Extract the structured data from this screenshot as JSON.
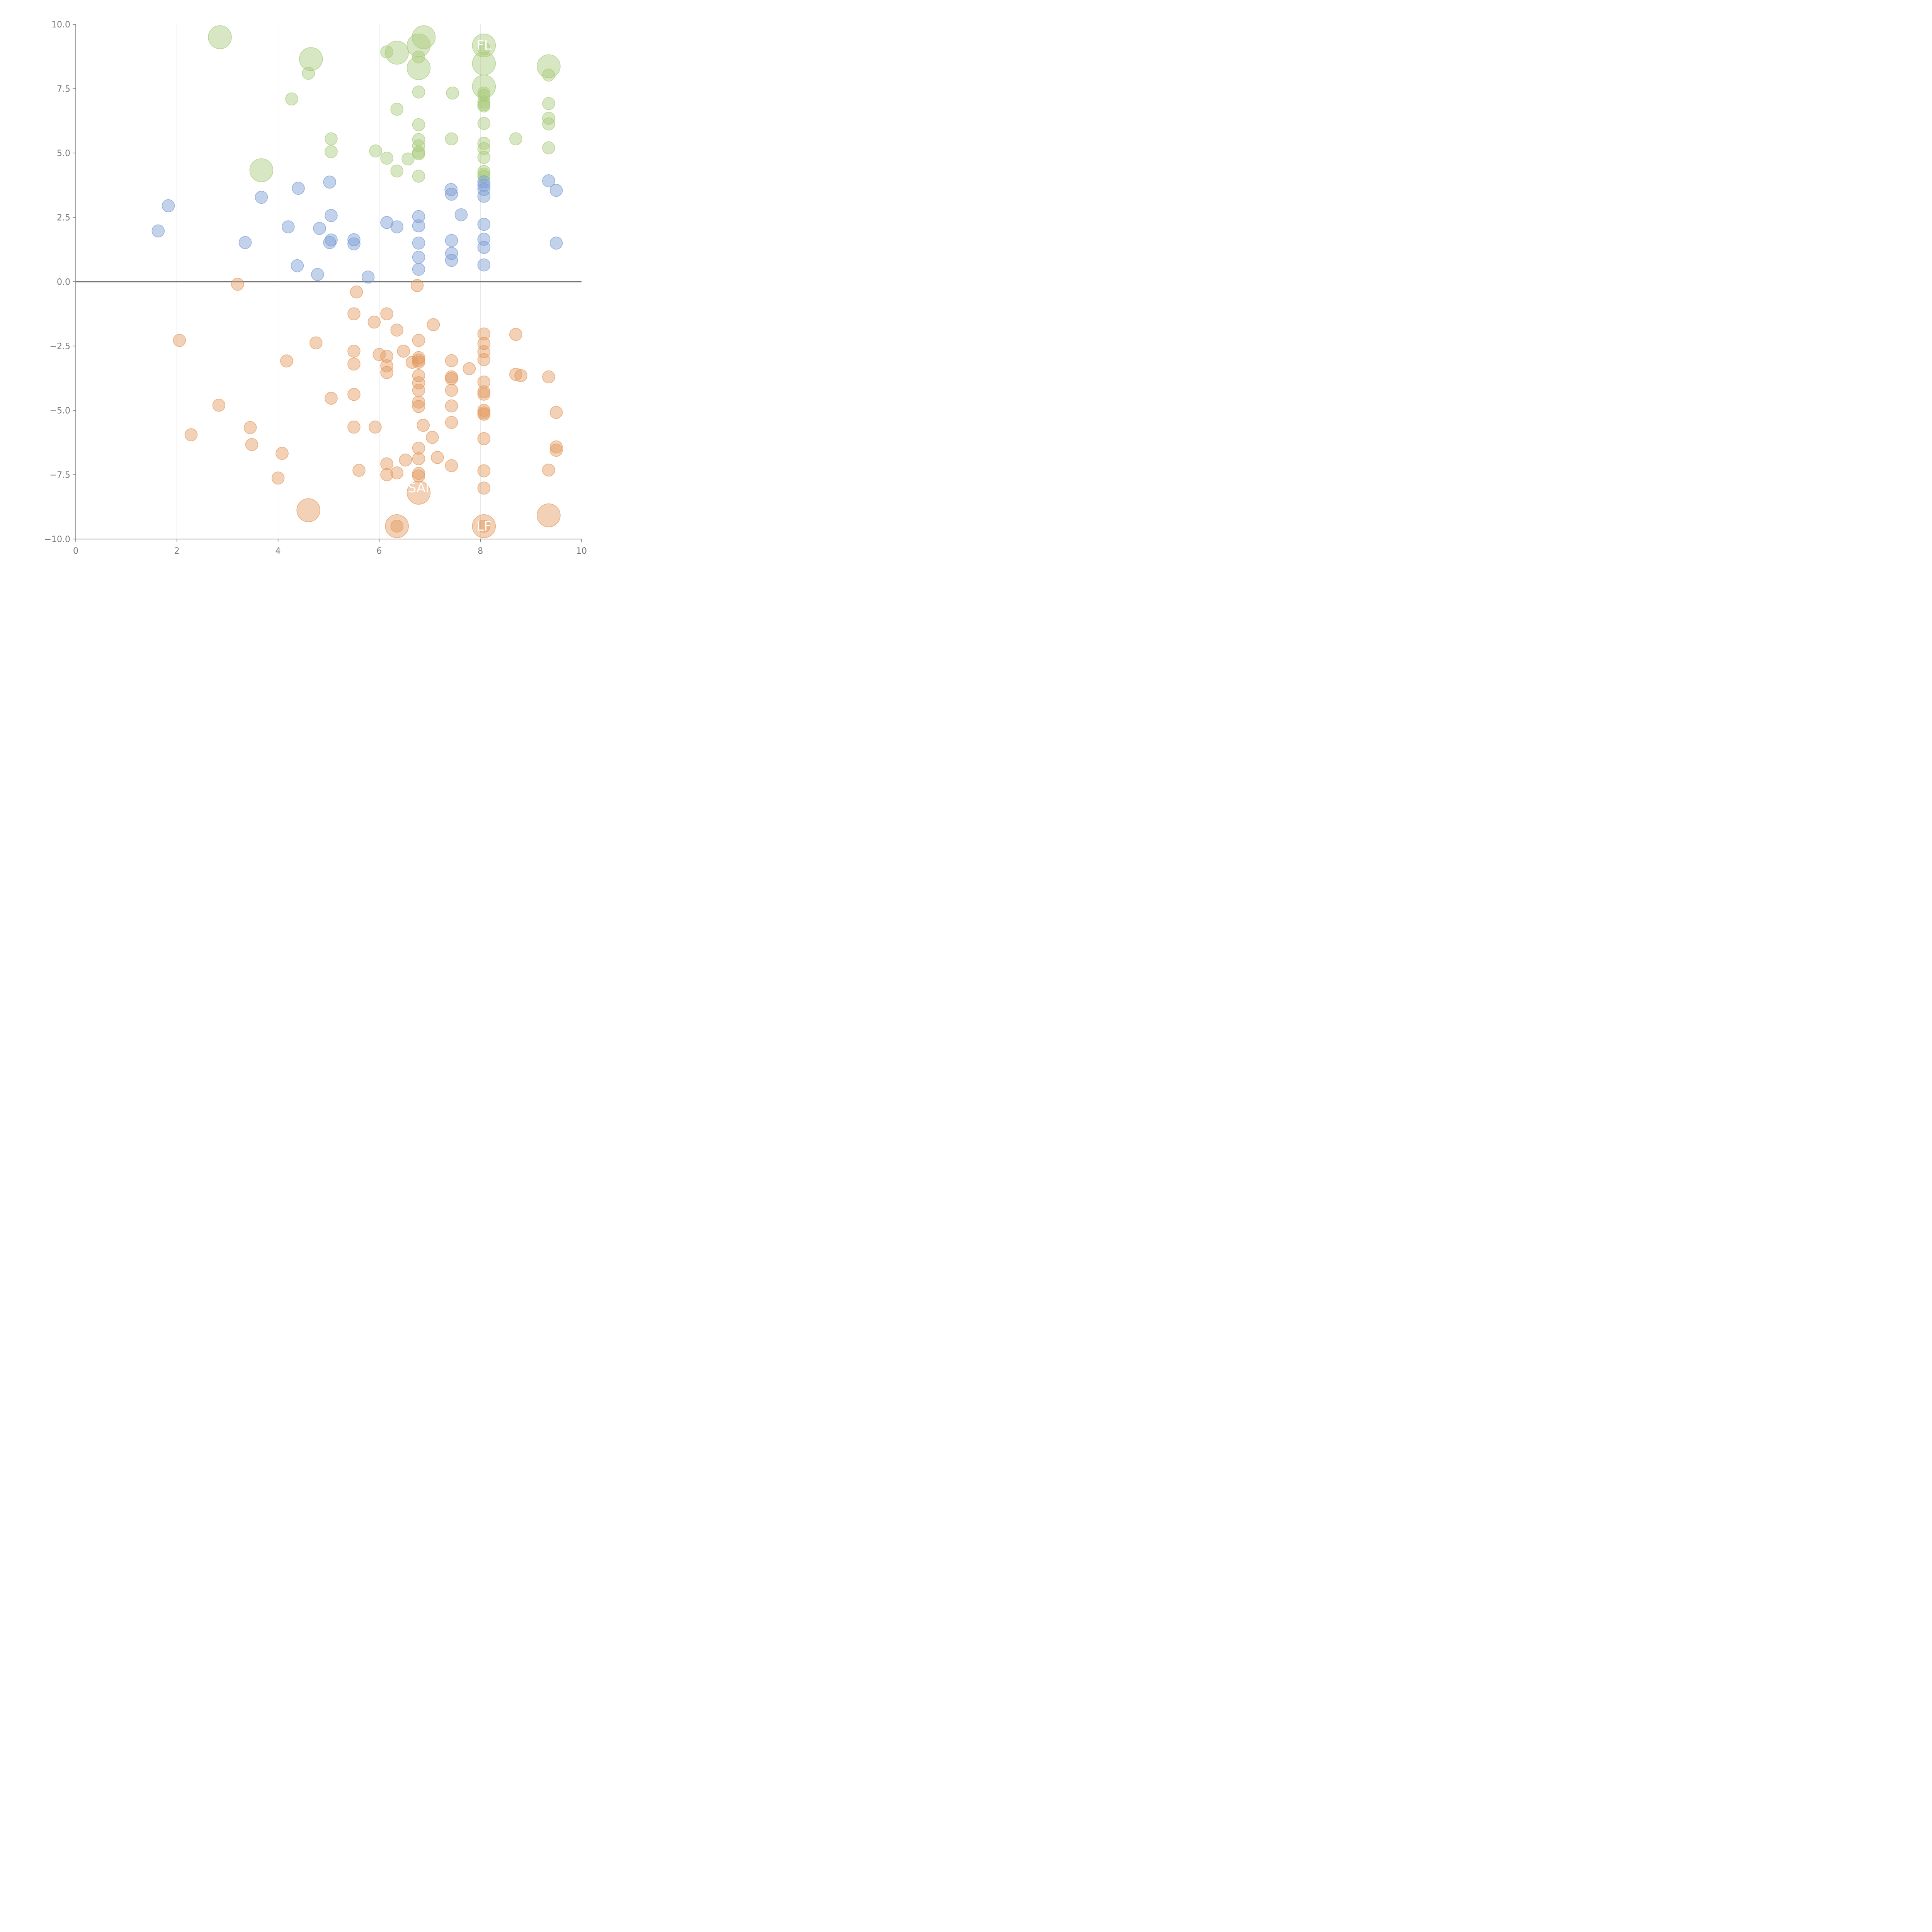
{
  "colors": {
    "positive": "#7a9cd2",
    "negative": "#e39a5e",
    "top": "#a9c97a",
    "axis": "#777777",
    "grid": "#dddddd",
    "zero_line": "#777777",
    "label": "#ffffff"
  },
  "chart_data": {
    "type": "scatter",
    "title": "",
    "xlabel": "",
    "ylabel": "",
    "xlim": [
      0,
      10
    ],
    "ylim": [
      -10,
      10
    ],
    "x_ticks": [
      0,
      2,
      4,
      6,
      8,
      10
    ],
    "x_tick_labels": [
      "0",
      "2",
      "4",
      "6",
      "8",
      "10"
    ],
    "y_ticks": [
      10,
      7.5,
      5,
      2.5,
      0,
      -2.5,
      -5,
      -7.5,
      -10
    ],
    "y_tick_labels": [
      "10.0",
      "7.5",
      "5.0",
      "2.5",
      "0.0",
      "−2.5",
      "−5.0",
      "−7.5",
      "−10.0"
    ],
    "vertical_grid_x": [
      2,
      4,
      6,
      8
    ],
    "series": [
      {
        "name": "top",
        "color_key": "top",
        "points": [
          {
            "x": 2.85,
            "y": 9.5,
            "size": "large"
          },
          {
            "x": 4.65,
            "y": 8.65,
            "size": "large"
          },
          {
            "x": 4.6,
            "y": 8.1,
            "size": "small"
          },
          {
            "x": 4.27,
            "y": 7.1,
            "size": "small"
          },
          {
            "x": 3.67,
            "y": 4.33,
            "size": "large"
          },
          {
            "x": 5.05,
            "y": 5.55,
            "size": "small"
          },
          {
            "x": 5.05,
            "y": 5.05,
            "size": "small"
          },
          {
            "x": 5.93,
            "y": 5.08,
            "size": "small"
          },
          {
            "x": 6.15,
            "y": 8.93,
            "size": "small"
          },
          {
            "x": 6.35,
            "y": 8.9,
            "size": "large"
          },
          {
            "x": 6.35,
            "y": 6.7,
            "size": "small"
          },
          {
            "x": 6.15,
            "y": 4.8,
            "size": "small"
          },
          {
            "x": 6.35,
            "y": 4.3,
            "size": "small"
          },
          {
            "x": 6.57,
            "y": 4.77,
            "size": "small"
          },
          {
            "x": 6.88,
            "y": 9.5,
            "size": "large"
          },
          {
            "x": 6.78,
            "y": 9.18,
            "size": "large"
          },
          {
            "x": 6.78,
            "y": 8.73,
            "size": "small"
          },
          {
            "x": 6.78,
            "y": 8.3,
            "size": "large"
          },
          {
            "x": 6.78,
            "y": 7.37,
            "size": "small"
          },
          {
            "x": 6.78,
            "y": 6.1,
            "size": "small"
          },
          {
            "x": 6.78,
            "y": 5.52,
            "size": "small"
          },
          {
            "x": 6.78,
            "y": 5.28,
            "size": "small"
          },
          {
            "x": 6.78,
            "y": 5.03,
            "size": "small"
          },
          {
            "x": 6.78,
            "y": 4.97,
            "size": "small"
          },
          {
            "x": 6.78,
            "y": 4.1,
            "size": "small"
          },
          {
            "x": 7.43,
            "y": 5.55,
            "size": "small"
          },
          {
            "x": 7.45,
            "y": 7.33,
            "size": "small"
          },
          {
            "x": 8.07,
            "y": 9.18,
            "size": "large"
          },
          {
            "x": 8.07,
            "y": 9.05,
            "size": "small"
          },
          {
            "x": 8.07,
            "y": 8.48,
            "size": "large"
          },
          {
            "x": 8.07,
            "y": 7.58,
            "size": "large"
          },
          {
            "x": 8.07,
            "y": 7.33,
            "size": "small"
          },
          {
            "x": 8.07,
            "y": 7.23,
            "size": "small"
          },
          {
            "x": 8.07,
            "y": 6.98,
            "size": "small"
          },
          {
            "x": 8.07,
            "y": 6.88,
            "size": "small"
          },
          {
            "x": 8.07,
            "y": 6.83,
            "size": "small"
          },
          {
            "x": 8.07,
            "y": 6.15,
            "size": "small"
          },
          {
            "x": 8.07,
            "y": 5.38,
            "size": "small"
          },
          {
            "x": 8.07,
            "y": 5.17,
            "size": "small"
          },
          {
            "x": 8.07,
            "y": 4.83,
            "size": "small"
          },
          {
            "x": 8.07,
            "y": 4.28,
            "size": "small"
          },
          {
            "x": 8.07,
            "y": 4.18,
            "size": "small"
          },
          {
            "x": 8.07,
            "y": 4.08,
            "size": "small"
          },
          {
            "x": 8.7,
            "y": 5.55,
            "size": "small"
          },
          {
            "x": 9.35,
            "y": 8.37,
            "size": "large"
          },
          {
            "x": 9.35,
            "y": 8.03,
            "size": "small"
          },
          {
            "x": 9.35,
            "y": 6.92,
            "size": "small"
          },
          {
            "x": 9.35,
            "y": 6.35,
            "size": "small"
          },
          {
            "x": 9.35,
            "y": 6.13,
            "size": "small"
          },
          {
            "x": 9.35,
            "y": 5.2,
            "size": "small"
          }
        ]
      },
      {
        "name": "positive",
        "color_key": "positive",
        "points": [
          {
            "x": 1.63,
            "y": 1.97,
            "size": "small"
          },
          {
            "x": 1.83,
            "y": 2.95,
            "size": "small"
          },
          {
            "x": 3.35,
            "y": 1.52,
            "size": "small"
          },
          {
            "x": 3.67,
            "y": 3.28,
            "size": "small"
          },
          {
            "x": 4.2,
            "y": 2.13,
            "size": "small"
          },
          {
            "x": 4.38,
            "y": 0.62,
            "size": "small"
          },
          {
            "x": 4.4,
            "y": 3.63,
            "size": "small"
          },
          {
            "x": 4.78,
            "y": 0.28,
            "size": "small"
          },
          {
            "x": 4.82,
            "y": 2.07,
            "size": "small"
          },
          {
            "x": 5.02,
            "y": 3.87,
            "size": "small"
          },
          {
            "x": 5.05,
            "y": 2.57,
            "size": "small"
          },
          {
            "x": 5.05,
            "y": 1.62,
            "size": "small"
          },
          {
            "x": 5.02,
            "y": 1.52,
            "size": "small"
          },
          {
            "x": 5.5,
            "y": 1.63,
            "size": "small"
          },
          {
            "x": 5.5,
            "y": 1.47,
            "size": "small"
          },
          {
            "x": 5.78,
            "y": 0.18,
            "size": "small"
          },
          {
            "x": 6.15,
            "y": 2.3,
            "size": "small"
          },
          {
            "x": 6.35,
            "y": 2.13,
            "size": "small"
          },
          {
            "x": 6.78,
            "y": 2.53,
            "size": "small"
          },
          {
            "x": 6.78,
            "y": 2.17,
            "size": "small"
          },
          {
            "x": 6.78,
            "y": 1.5,
            "size": "small"
          },
          {
            "x": 6.78,
            "y": 0.95,
            "size": "small"
          },
          {
            "x": 6.78,
            "y": 0.48,
            "size": "small"
          },
          {
            "x": 7.42,
            "y": 3.58,
            "size": "small"
          },
          {
            "x": 7.43,
            "y": 3.4,
            "size": "small"
          },
          {
            "x": 7.43,
            "y": 1.6,
            "size": "small"
          },
          {
            "x": 7.43,
            "y": 1.1,
            "size": "small"
          },
          {
            "x": 7.43,
            "y": 0.83,
            "size": "small"
          },
          {
            "x": 7.62,
            "y": 2.6,
            "size": "small"
          },
          {
            "x": 8.07,
            "y": 3.88,
            "size": "small"
          },
          {
            "x": 8.07,
            "y": 3.75,
            "size": "small"
          },
          {
            "x": 8.07,
            "y": 3.58,
            "size": "small"
          },
          {
            "x": 8.07,
            "y": 3.32,
            "size": "small"
          },
          {
            "x": 8.07,
            "y": 2.23,
            "size": "small"
          },
          {
            "x": 8.07,
            "y": 1.65,
            "size": "small"
          },
          {
            "x": 8.07,
            "y": 1.33,
            "size": "small"
          },
          {
            "x": 8.07,
            "y": 0.65,
            "size": "small"
          },
          {
            "x": 9.35,
            "y": 3.92,
            "size": "small"
          },
          {
            "x": 9.5,
            "y": 3.55,
            "size": "small"
          },
          {
            "x": 9.5,
            "y": 1.5,
            "size": "small"
          }
        ]
      },
      {
        "name": "negative",
        "color_key": "negative",
        "points": [
          {
            "x": 2.05,
            "y": -2.28,
            "size": "small"
          },
          {
            "x": 2.28,
            "y": -5.95,
            "size": "small"
          },
          {
            "x": 2.83,
            "y": -4.8,
            "size": "small"
          },
          {
            "x": 3.2,
            "y": -0.1,
            "size": "small"
          },
          {
            "x": 3.45,
            "y": -5.67,
            "size": "small"
          },
          {
            "x": 3.48,
            "y": -6.33,
            "size": "small"
          },
          {
            "x": 4.0,
            "y": -7.63,
            "size": "small"
          },
          {
            "x": 4.08,
            "y": -6.67,
            "size": "small"
          },
          {
            "x": 4.17,
            "y": -3.08,
            "size": "small"
          },
          {
            "x": 4.6,
            "y": -8.88,
            "size": "large"
          },
          {
            "x": 4.75,
            "y": -2.38,
            "size": "small"
          },
          {
            "x": 5.05,
            "y": -4.53,
            "size": "small"
          },
          {
            "x": 5.5,
            "y": -1.25,
            "size": "small"
          },
          {
            "x": 5.5,
            "y": -2.7,
            "size": "small"
          },
          {
            "x": 5.5,
            "y": -3.2,
            "size": "small"
          },
          {
            "x": 5.5,
            "y": -4.38,
            "size": "small"
          },
          {
            "x": 5.5,
            "y": -5.65,
            "size": "small"
          },
          {
            "x": 5.55,
            "y": -0.4,
            "size": "small"
          },
          {
            "x": 5.6,
            "y": -7.33,
            "size": "small"
          },
          {
            "x": 5.9,
            "y": -1.57,
            "size": "small"
          },
          {
            "x": 5.92,
            "y": -5.65,
            "size": "small"
          },
          {
            "x": 6.0,
            "y": -2.83,
            "size": "small"
          },
          {
            "x": 6.15,
            "y": -1.25,
            "size": "small"
          },
          {
            "x": 6.15,
            "y": -2.9,
            "size": "small"
          },
          {
            "x": 6.15,
            "y": -3.27,
            "size": "small"
          },
          {
            "x": 6.15,
            "y": -3.53,
            "size": "small"
          },
          {
            "x": 6.15,
            "y": -7.08,
            "size": "small"
          },
          {
            "x": 6.15,
            "y": -7.5,
            "size": "small"
          },
          {
            "x": 6.35,
            "y": -1.88,
            "size": "small"
          },
          {
            "x": 6.35,
            "y": -7.43,
            "size": "small"
          },
          {
            "x": 6.35,
            "y": -9.5,
            "size": "large"
          },
          {
            "x": 6.35,
            "y": -9.5,
            "size": "small"
          },
          {
            "x": 6.48,
            "y": -2.7,
            "size": "small"
          },
          {
            "x": 6.52,
            "y": -6.93,
            "size": "small"
          },
          {
            "x": 6.65,
            "y": -3.13,
            "size": "small"
          },
          {
            "x": 6.75,
            "y": -0.15,
            "size": "small"
          },
          {
            "x": 6.78,
            "y": -2.28,
            "size": "small"
          },
          {
            "x": 6.78,
            "y": -2.95,
            "size": "small"
          },
          {
            "x": 6.78,
            "y": -3.05,
            "size": "small"
          },
          {
            "x": 6.78,
            "y": -3.13,
            "size": "small"
          },
          {
            "x": 6.78,
            "y": -3.65,
            "size": "small"
          },
          {
            "x": 6.78,
            "y": -3.93,
            "size": "small"
          },
          {
            "x": 6.78,
            "y": -4.22,
            "size": "small"
          },
          {
            "x": 6.78,
            "y": -4.68,
            "size": "small"
          },
          {
            "x": 6.78,
            "y": -4.85,
            "size": "small"
          },
          {
            "x": 6.78,
            "y": -6.47,
            "size": "small"
          },
          {
            "x": 6.78,
            "y": -6.88,
            "size": "small"
          },
          {
            "x": 6.78,
            "y": -7.45,
            "size": "small"
          },
          {
            "x": 6.78,
            "y": -7.55,
            "size": "small"
          },
          {
            "x": 6.78,
            "y": -8.2,
            "size": "large"
          },
          {
            "x": 6.87,
            "y": -5.58,
            "size": "small"
          },
          {
            "x": 7.05,
            "y": -6.05,
            "size": "small"
          },
          {
            "x": 7.07,
            "y": -1.67,
            "size": "small"
          },
          {
            "x": 7.15,
            "y": -6.83,
            "size": "small"
          },
          {
            "x": 7.43,
            "y": -3.07,
            "size": "small"
          },
          {
            "x": 7.43,
            "y": -3.7,
            "size": "small"
          },
          {
            "x": 7.43,
            "y": -3.77,
            "size": "small"
          },
          {
            "x": 7.43,
            "y": -4.22,
            "size": "small"
          },
          {
            "x": 7.43,
            "y": -4.83,
            "size": "small"
          },
          {
            "x": 7.43,
            "y": -5.47,
            "size": "small"
          },
          {
            "x": 7.43,
            "y": -7.15,
            "size": "small"
          },
          {
            "x": 7.78,
            "y": -3.38,
            "size": "small"
          },
          {
            "x": 8.07,
            "y": -2.03,
            "size": "small"
          },
          {
            "x": 8.07,
            "y": -2.4,
            "size": "small"
          },
          {
            "x": 8.07,
            "y": -2.72,
            "size": "small"
          },
          {
            "x": 8.07,
            "y": -3.03,
            "size": "small"
          },
          {
            "x": 8.07,
            "y": -3.9,
            "size": "small"
          },
          {
            "x": 8.07,
            "y": -4.28,
            "size": "small"
          },
          {
            "x": 8.07,
            "y": -4.37,
            "size": "small"
          },
          {
            "x": 8.07,
            "y": -5.0,
            "size": "small"
          },
          {
            "x": 8.07,
            "y": -5.1,
            "size": "small"
          },
          {
            "x": 8.07,
            "y": -5.15,
            "size": "small"
          },
          {
            "x": 8.07,
            "y": -6.1,
            "size": "small"
          },
          {
            "x": 8.07,
            "y": -7.35,
            "size": "small"
          },
          {
            "x": 8.07,
            "y": -8.02,
            "size": "small"
          },
          {
            "x": 8.07,
            "y": -9.5,
            "size": "large"
          },
          {
            "x": 8.07,
            "y": -9.5,
            "size": "small"
          },
          {
            "x": 8.7,
            "y": -2.05,
            "size": "small"
          },
          {
            "x": 8.7,
            "y": -3.6,
            "size": "small"
          },
          {
            "x": 8.8,
            "y": -3.65,
            "size": "small"
          },
          {
            "x": 9.35,
            "y": -3.7,
            "size": "small"
          },
          {
            "x": 9.35,
            "y": -7.32,
            "size": "small"
          },
          {
            "x": 9.35,
            "y": -9.08,
            "size": "large"
          },
          {
            "x": 9.5,
            "y": -5.08,
            "size": "small"
          },
          {
            "x": 9.5,
            "y": -6.42,
            "size": "small"
          },
          {
            "x": 9.5,
            "y": -6.55,
            "size": "small"
          }
        ]
      }
    ],
    "annotations": [
      {
        "text": "FL",
        "x": 8.07,
        "y": 9.2
      },
      {
        "text": "SAI",
        "x": 6.78,
        "y": -8.0
      },
      {
        "text": "LF",
        "x": 8.07,
        "y": -9.5
      }
    ]
  }
}
